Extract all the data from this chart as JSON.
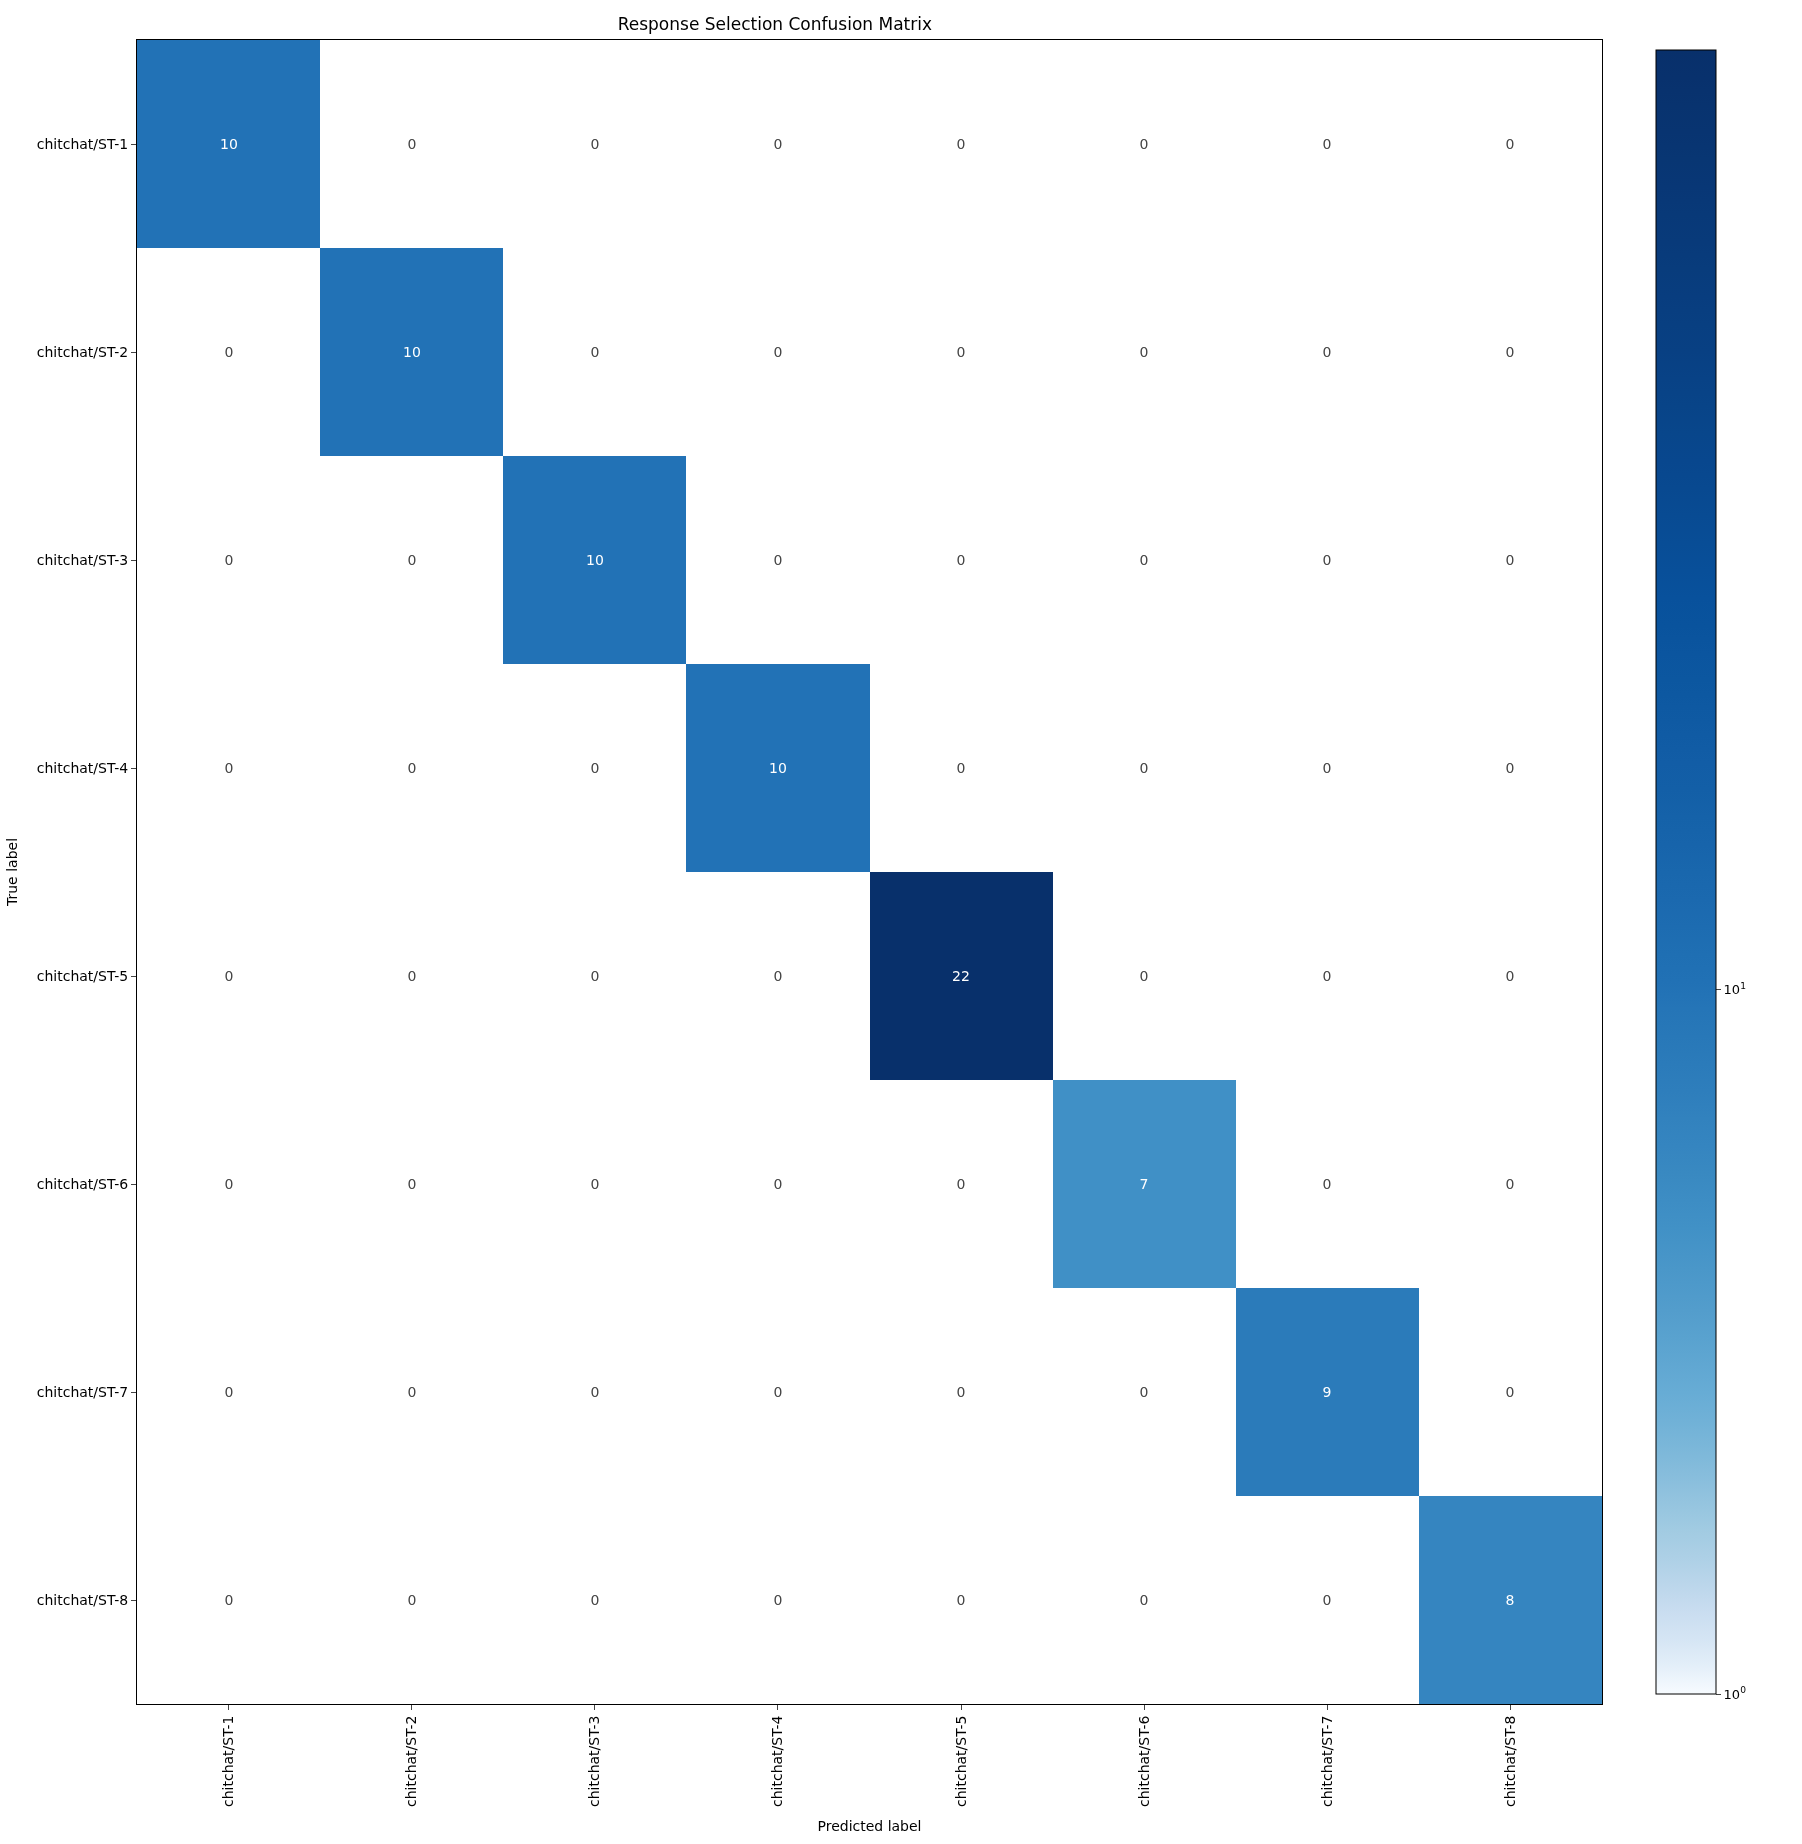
{
  "chart_data": {
    "type": "heatmap",
    "title": "Response Selection Confusion Matrix",
    "xlabel": "Predicted label",
    "ylabel": "True label",
    "categories": [
      "chitchat/ST-1",
      "chitchat/ST-2",
      "chitchat/ST-3",
      "chitchat/ST-4",
      "chitchat/ST-5",
      "chitchat/ST-6",
      "chitchat/ST-7",
      "chitchat/ST-8"
    ],
    "y_categories": [
      "chitchat/ST-1",
      "chitchat/ST-2",
      "chitchat/ST-3",
      "chitchat/ST-4",
      "chitchat/ST-5",
      "chitchat/ST-6",
      "chitchat/ST-7",
      "chitchat/ST-8"
    ],
    "cells": [
      [
        10,
        null,
        null,
        null,
        null,
        null,
        null,
        null
      ],
      [
        null,
        10,
        null,
        null,
        null,
        null,
        null,
        null
      ],
      [
        null,
        null,
        10,
        null,
        null,
        null,
        null,
        null
      ],
      [
        null,
        null,
        null,
        10,
        null,
        null,
        null,
        null
      ],
      [
        null,
        null,
        null,
        null,
        22,
        null,
        null,
        null
      ],
      [
        null,
        null,
        null,
        null,
        null,
        7,
        null,
        null
      ],
      [
        null,
        null,
        null,
        null,
        null,
        null,
        9,
        null
      ],
      [
        null,
        null,
        null,
        null,
        null,
        null,
        null,
        8
      ]
    ],
    "cell_labels": [
      [
        "10",
        "0",
        "0",
        "0",
        "0",
        "0",
        "0",
        "0"
      ],
      [
        "0",
        "10",
        "0",
        "0",
        "0",
        "0",
        "0",
        "0"
      ],
      [
        "0",
        "0",
        "10",
        "0",
        "0",
        "0",
        "0",
        "0"
      ],
      [
        "0",
        "0",
        "0",
        "10",
        "0",
        "0",
        "0",
        "0"
      ],
      [
        "0",
        "0",
        "0",
        "0",
        "22",
        "0",
        "0",
        "0"
      ],
      [
        "0",
        "0",
        "0",
        "0",
        "0",
        "7",
        "0",
        "0"
      ],
      [
        "0",
        "0",
        "0",
        "0",
        "0",
        "0",
        "9",
        "0"
      ],
      [
        "0",
        "0",
        "0",
        "0",
        "0",
        "0",
        "0",
        "8"
      ]
    ],
    "clim": [
      1,
      22
    ],
    "cticks": [
      {
        "value": 1,
        "label": "10$^{0}$"
      },
      {
        "value": 10,
        "label": "10$^{1}$"
      }
    ]
  }
}
